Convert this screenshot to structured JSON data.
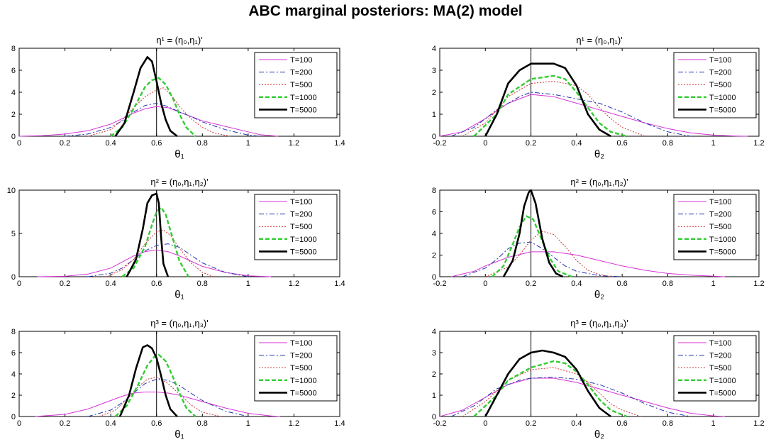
{
  "figure": {
    "title": "ABC marginal posteriors: MA(2) model"
  },
  "style": {
    "series_colors": {
      "T=100": "#d633d6",
      "T=200": "#2233aa",
      "T=500": "#cc3333",
      "T=1000": "#33cc33",
      "T=5000": "#000000"
    },
    "series_dash": {
      "T=100": "solid",
      "T=200": "dashdot",
      "T=500": "dotted",
      "T=1000": "dashed",
      "T=5000": "solid-thick"
    }
  },
  "chart_data": [
    {
      "type": "line",
      "title": "η¹ = (η₀,η₁)'",
      "xlabel": "θ₁",
      "xlim": [
        0,
        1.4
      ],
      "ylim": [
        0,
        8
      ],
      "xticks": [
        0,
        0.2,
        0.4,
        0.6,
        0.8,
        1,
        1.2,
        1.4
      ],
      "yticks": [
        0,
        2,
        4,
        6,
        8
      ],
      "vline": 0.6,
      "legend_position": "top-right",
      "series": [
        {
          "name": "T=100",
          "x": [
            0,
            0.1,
            0.2,
            0.3,
            0.4,
            0.45,
            0.5,
            0.55,
            0.6,
            0.65,
            0.7,
            0.75,
            0.8,
            0.9,
            1.0,
            1.05,
            1.13
          ],
          "y": [
            0,
            0.05,
            0.2,
            0.5,
            1.1,
            1.6,
            2.1,
            2.5,
            2.7,
            2.6,
            2.2,
            1.8,
            1.4,
            0.9,
            0.4,
            0.15,
            0
          ]
        },
        {
          "name": "T=200",
          "x": [
            0.2,
            0.3,
            0.4,
            0.45,
            0.5,
            0.55,
            0.6,
            0.65,
            0.7,
            0.75,
            0.8,
            0.9,
            1.0,
            1.05
          ],
          "y": [
            0,
            0.2,
            0.8,
            1.4,
            2.2,
            2.8,
            3.0,
            2.7,
            2.2,
            1.8,
            1.3,
            0.6,
            0.1,
            0
          ]
        },
        {
          "name": "T=500",
          "x": [
            0.3,
            0.4,
            0.45,
            0.5,
            0.55,
            0.6,
            0.63,
            0.67,
            0.7,
            0.75,
            0.8,
            0.85,
            0.92
          ],
          "y": [
            0,
            0.6,
            1.5,
            2.6,
            3.6,
            4.2,
            4.4,
            3.6,
            2.7,
            1.6,
            0.8,
            0.3,
            0
          ]
        },
        {
          "name": "T=1000",
          "x": [
            0.4,
            0.45,
            0.5,
            0.55,
            0.58,
            0.61,
            0.64,
            0.67,
            0.7,
            0.73,
            0.77
          ],
          "y": [
            0,
            0.8,
            2.5,
            4.5,
            5.1,
            5.3,
            4.7,
            3.5,
            2.0,
            0.8,
            0
          ]
        },
        {
          "name": "T=5000",
          "x": [
            0.42,
            0.46,
            0.5,
            0.53,
            0.56,
            0.58,
            0.6,
            0.62,
            0.64,
            0.66,
            0.69
          ],
          "y": [
            0,
            1.2,
            4.0,
            6.2,
            7.2,
            6.8,
            5.0,
            3.0,
            1.5,
            0.5,
            0
          ]
        }
      ]
    },
    {
      "type": "line",
      "title": "η¹ = (η₀,η₁)'",
      "xlabel": "θ₂",
      "xlim": [
        -0.2,
        1.2
      ],
      "ylim": [
        0,
        4
      ],
      "xticks": [
        -0.2,
        0,
        0.2,
        0.4,
        0.6,
        0.8,
        1,
        1.2
      ],
      "yticks": [
        0,
        1,
        2,
        3,
        4
      ],
      "vline": 0.2,
      "legend_position": "top-right",
      "series": [
        {
          "name": "T=100",
          "x": [
            -0.2,
            -0.1,
            0,
            0.1,
            0.2,
            0.3,
            0.4,
            0.5,
            0.6,
            0.7,
            0.8,
            0.9,
            1.0,
            1.1,
            1.15
          ],
          "y": [
            0,
            0.2,
            0.8,
            1.5,
            1.9,
            1.8,
            1.5,
            1.2,
            0.9,
            0.6,
            0.35,
            0.15,
            0.05,
            0.01,
            0
          ]
        },
        {
          "name": "T=200",
          "x": [
            -0.15,
            -0.05,
            0.05,
            0.15,
            0.2,
            0.3,
            0.4,
            0.5,
            0.6,
            0.7,
            0.8,
            0.9
          ],
          "y": [
            0,
            0.4,
            1.2,
            1.8,
            2.0,
            1.9,
            1.7,
            1.5,
            1.1,
            0.6,
            0.2,
            0
          ]
        },
        {
          "name": "T=500",
          "x": [
            -0.1,
            0,
            0.1,
            0.2,
            0.3,
            0.4,
            0.45,
            0.5,
            0.55,
            0.6,
            0.7
          ],
          "y": [
            0,
            0.6,
            1.8,
            2.4,
            2.5,
            2.3,
            1.9,
            1.3,
            0.8,
            0.4,
            0
          ]
        },
        {
          "name": "T=1000",
          "x": [
            -0.05,
            0.05,
            0.1,
            0.2,
            0.3,
            0.35,
            0.4,
            0.45,
            0.5,
            0.55,
            0.62
          ],
          "y": [
            0,
            1.0,
            1.9,
            2.6,
            2.75,
            2.6,
            2.0,
            1.3,
            0.6,
            0.2,
            0
          ]
        },
        {
          "name": "T=5000",
          "x": [
            0,
            0.05,
            0.1,
            0.15,
            0.2,
            0.25,
            0.3,
            0.35,
            0.4,
            0.45,
            0.5,
            0.55
          ],
          "y": [
            0,
            1.0,
            2.4,
            3.0,
            3.3,
            3.3,
            3.3,
            3.1,
            2.3,
            1.0,
            0.3,
            0
          ]
        }
      ]
    },
    {
      "type": "line",
      "title": "η² = (η₀,η₁,η₂)'",
      "xlabel": "θ₁",
      "xlim": [
        0,
        1.4
      ],
      "ylim": [
        0,
        10
      ],
      "xticks": [
        0,
        0.2,
        0.4,
        0.6,
        0.8,
        1,
        1.2,
        1.4
      ],
      "yticks": [
        0,
        5,
        10
      ],
      "vline": 0.6,
      "legend_position": "top-right",
      "series": [
        {
          "name": "T=100",
          "x": [
            0.08,
            0.2,
            0.3,
            0.4,
            0.45,
            0.5,
            0.55,
            0.6,
            0.65,
            0.7,
            0.75,
            0.8,
            0.9,
            1.0,
            1.1
          ],
          "y": [
            0,
            0.05,
            0.3,
            1.0,
            1.7,
            2.4,
            2.9,
            3.1,
            2.9,
            2.4,
            1.8,
            1.2,
            0.5,
            0.1,
            0
          ]
        },
        {
          "name": "T=200",
          "x": [
            0.3,
            0.4,
            0.45,
            0.5,
            0.55,
            0.6,
            0.65,
            0.7,
            0.75,
            0.8,
            0.9,
            1.0
          ],
          "y": [
            0,
            0.4,
            1.0,
            2.0,
            3.0,
            3.6,
            3.8,
            3.4,
            2.5,
            1.6,
            0.5,
            0
          ]
        },
        {
          "name": "T=500",
          "x": [
            0.38,
            0.45,
            0.5,
            0.55,
            0.6,
            0.63,
            0.66,
            0.7,
            0.75,
            0.8,
            0.85
          ],
          "y": [
            0,
            0.8,
            2.0,
            3.8,
            5.2,
            5.4,
            4.8,
            3.3,
            1.6,
            0.5,
            0
          ]
        },
        {
          "name": "T=1000",
          "x": [
            0.45,
            0.5,
            0.55,
            0.58,
            0.6,
            0.62,
            0.64,
            0.67,
            0.7,
            0.74
          ],
          "y": [
            0,
            1.0,
            3.5,
            6.0,
            7.5,
            8.0,
            7.2,
            4.5,
            1.8,
            0
          ]
        },
        {
          "name": "T=5000",
          "x": [
            0.47,
            0.51,
            0.54,
            0.56,
            0.58,
            0.6,
            0.61,
            0.62,
            0.63,
            0.65
          ],
          "y": [
            0,
            2.0,
            5.5,
            8.5,
            9.4,
            9.6,
            8.5,
            4.5,
            1.5,
            0
          ]
        }
      ]
    },
    {
      "type": "line",
      "title": "η² = (η₀,η₁,η₂)'",
      "xlabel": "θ₂",
      "xlim": [
        -0.2,
        1.2
      ],
      "ylim": [
        0,
        8
      ],
      "xticks": [
        -0.2,
        0,
        0.2,
        0.4,
        0.6,
        0.8,
        1,
        1.2
      ],
      "yticks": [
        0,
        2,
        4,
        6,
        8
      ],
      "vline": 0.2,
      "legend_position": "top-right",
      "series": [
        {
          "name": "T=100",
          "x": [
            -0.15,
            -0.05,
            0,
            0.1,
            0.2,
            0.3,
            0.4,
            0.5,
            0.6,
            0.7,
            0.8,
            0.9,
            1.0,
            1.05
          ],
          "y": [
            0,
            0.5,
            1.0,
            1.8,
            2.3,
            2.3,
            2.0,
            1.5,
            1.0,
            0.6,
            0.3,
            0.15,
            0.05,
            0
          ]
        },
        {
          "name": "T=200",
          "x": [
            -0.1,
            0,
            0.05,
            0.1,
            0.15,
            0.2,
            0.25,
            0.3,
            0.35,
            0.4,
            0.5,
            0.6
          ],
          "y": [
            0,
            0.8,
            1.6,
            2.6,
            3.1,
            3.2,
            2.6,
            1.8,
            1.0,
            0.5,
            0.1,
            0
          ]
        },
        {
          "name": "T=500",
          "x": [
            0,
            0.1,
            0.15,
            0.2,
            0.25,
            0.3,
            0.35,
            0.4,
            0.45,
            0.5,
            0.55
          ],
          "y": [
            0,
            0.9,
            2.0,
            3.4,
            4.2,
            3.9,
            2.8,
            1.5,
            0.6,
            0.2,
            0
          ]
        },
        {
          "name": "T=1000",
          "x": [
            0.03,
            0.08,
            0.12,
            0.15,
            0.18,
            0.21,
            0.24,
            0.28,
            0.32,
            0.38
          ],
          "y": [
            0,
            1.0,
            3.0,
            4.6,
            5.6,
            5.3,
            3.8,
            1.8,
            0.5,
            0
          ]
        },
        {
          "name": "T=5000",
          "x": [
            0.08,
            0.12,
            0.15,
            0.17,
            0.19,
            0.2,
            0.22,
            0.25,
            0.28,
            0.31,
            0.34
          ],
          "y": [
            0,
            1.5,
            4.0,
            6.5,
            7.8,
            8.0,
            6.8,
            3.5,
            1.3,
            0.3,
            0
          ]
        }
      ]
    },
    {
      "type": "line",
      "title": "η³ = (η₀,η₁,η₃)'",
      "xlabel": "θ₁",
      "xlim": [
        0,
        1.4
      ],
      "ylim": [
        0,
        8
      ],
      "xticks": [
        0,
        0.2,
        0.4,
        0.6,
        0.8,
        1,
        1.2,
        1.4
      ],
      "yticks": [
        0,
        2,
        4,
        6,
        8
      ],
      "vline": 0.6,
      "legend_position": "top-right",
      "series": [
        {
          "name": "T=100",
          "x": [
            0.07,
            0.2,
            0.3,
            0.4,
            0.45,
            0.5,
            0.55,
            0.6,
            0.65,
            0.7,
            0.75,
            0.8,
            0.9,
            1.0,
            1.1,
            1.14
          ],
          "y": [
            0,
            0.2,
            0.7,
            1.5,
            1.9,
            2.2,
            2.3,
            2.3,
            2.2,
            2.0,
            1.7,
            1.4,
            0.8,
            0.3,
            0.05,
            0
          ]
        },
        {
          "name": "T=200",
          "x": [
            0.3,
            0.4,
            0.45,
            0.5,
            0.55,
            0.6,
            0.65,
            0.7,
            0.75,
            0.8,
            0.9,
            1.0
          ],
          "y": [
            0,
            0.6,
            1.3,
            2.2,
            3.1,
            3.5,
            3.4,
            2.9,
            2.2,
            1.5,
            0.5,
            0
          ]
        },
        {
          "name": "T=500",
          "x": [
            0.35,
            0.42,
            0.47,
            0.52,
            0.56,
            0.6,
            0.65,
            0.7,
            0.75,
            0.8,
            0.88
          ],
          "y": [
            0,
            0.6,
            1.6,
            2.8,
            3.5,
            3.7,
            3.1,
            2.1,
            1.1,
            0.4,
            0
          ]
        },
        {
          "name": "T=1000",
          "x": [
            0.42,
            0.47,
            0.52,
            0.56,
            0.59,
            0.61,
            0.64,
            0.67,
            0.7,
            0.73,
            0.77
          ],
          "y": [
            0,
            1.0,
            3.0,
            4.8,
            5.6,
            5.8,
            5.2,
            3.8,
            2.2,
            0.8,
            0
          ]
        },
        {
          "name": "T=5000",
          "x": [
            0.44,
            0.48,
            0.51,
            0.54,
            0.56,
            0.58,
            0.6,
            0.62,
            0.64,
            0.66,
            0.69
          ],
          "y": [
            0,
            2.0,
            4.5,
            6.5,
            6.7,
            6.4,
            5.5,
            3.8,
            2.0,
            0.7,
            0
          ]
        }
      ]
    },
    {
      "type": "line",
      "title": "η³ = (η₀,η₁,η₃)'",
      "xlabel": "θ₂",
      "xlim": [
        -0.2,
        1.2
      ],
      "ylim": [
        0,
        4
      ],
      "xticks": [
        -0.2,
        0,
        0.2,
        0.4,
        0.6,
        0.8,
        1,
        1.2
      ],
      "yticks": [
        0,
        1,
        2,
        3,
        4
      ],
      "vline": 0.2,
      "legend_position": "top-right",
      "series": [
        {
          "name": "T=100",
          "x": [
            -0.2,
            -0.1,
            0,
            0.1,
            0.2,
            0.3,
            0.4,
            0.5,
            0.6,
            0.7,
            0.8,
            0.9,
            1.0,
            1.05
          ],
          "y": [
            0,
            0.3,
            0.9,
            1.5,
            1.8,
            1.8,
            1.6,
            1.3,
            1.0,
            0.7,
            0.4,
            0.15,
            0.03,
            0
          ]
        },
        {
          "name": "T=200",
          "x": [
            -0.15,
            -0.05,
            0.05,
            0.15,
            0.2,
            0.3,
            0.4,
            0.5,
            0.6,
            0.7,
            0.8,
            0.9
          ],
          "y": [
            0,
            0.5,
            1.3,
            1.7,
            1.8,
            1.85,
            1.75,
            1.5,
            1.1,
            0.6,
            0.2,
            0
          ]
        },
        {
          "name": "T=500",
          "x": [
            -0.1,
            0,
            0.1,
            0.2,
            0.3,
            0.4,
            0.45,
            0.5,
            0.55,
            0.6,
            0.68
          ],
          "y": [
            0,
            0.7,
            1.7,
            2.2,
            2.3,
            2.0,
            1.6,
            1.1,
            0.6,
            0.3,
            0
          ]
        },
        {
          "name": "T=1000",
          "x": [
            -0.05,
            0.05,
            0.1,
            0.2,
            0.3,
            0.35,
            0.4,
            0.45,
            0.5,
            0.55,
            0.62
          ],
          "y": [
            0,
            1.0,
            1.7,
            2.3,
            2.6,
            2.5,
            2.1,
            1.5,
            0.8,
            0.3,
            0
          ]
        },
        {
          "name": "T=5000",
          "x": [
            0,
            0.05,
            0.1,
            0.15,
            0.2,
            0.25,
            0.3,
            0.35,
            0.4,
            0.45,
            0.5,
            0.55
          ],
          "y": [
            0,
            1.0,
            2.0,
            2.7,
            3.0,
            3.1,
            3.0,
            2.8,
            2.2,
            1.2,
            0.4,
            0
          ]
        }
      ]
    }
  ]
}
